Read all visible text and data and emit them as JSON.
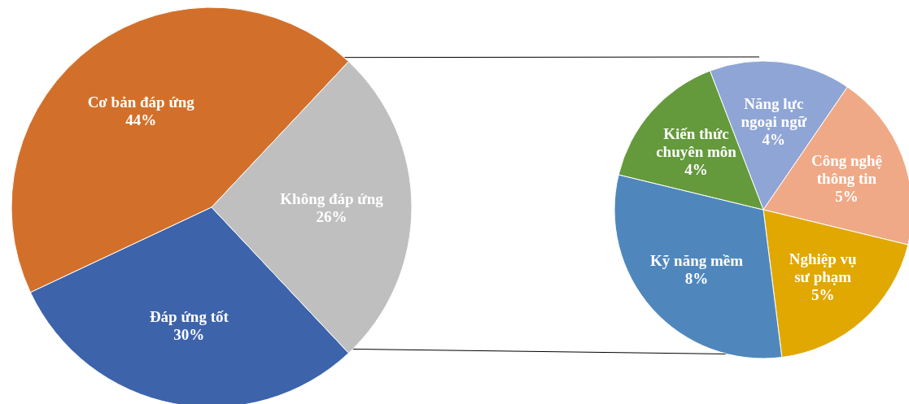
{
  "chart_data": [
    {
      "type": "pie",
      "categories": [
        "Cơ bản đáp ứng",
        "Đáp ứng tốt",
        "Không đáp ứng"
      ],
      "values": [
        44,
        30,
        26
      ],
      "colors": [
        "#d2702b",
        "#3d63ab",
        "#bfbfbf"
      ],
      "value_labels": [
        "44%",
        "30%",
        "26%"
      ]
    },
    {
      "type": "pie",
      "categories": [
        "Năng lực ngoại ngữ",
        "Công nghệ thông tin",
        "Nghiệp vụ sư phạm",
        "Kỹ năng mềm",
        "Kiến thức chuyên môn"
      ],
      "values": [
        4,
        5,
        5,
        8,
        4
      ],
      "colors": [
        "#8fa5d5",
        "#f0a986",
        "#e0a800",
        "#4f87bd",
        "#64993c"
      ],
      "value_labels": [
        "4%",
        "5%",
        "5%",
        "8%",
        "4%"
      ]
    }
  ]
}
